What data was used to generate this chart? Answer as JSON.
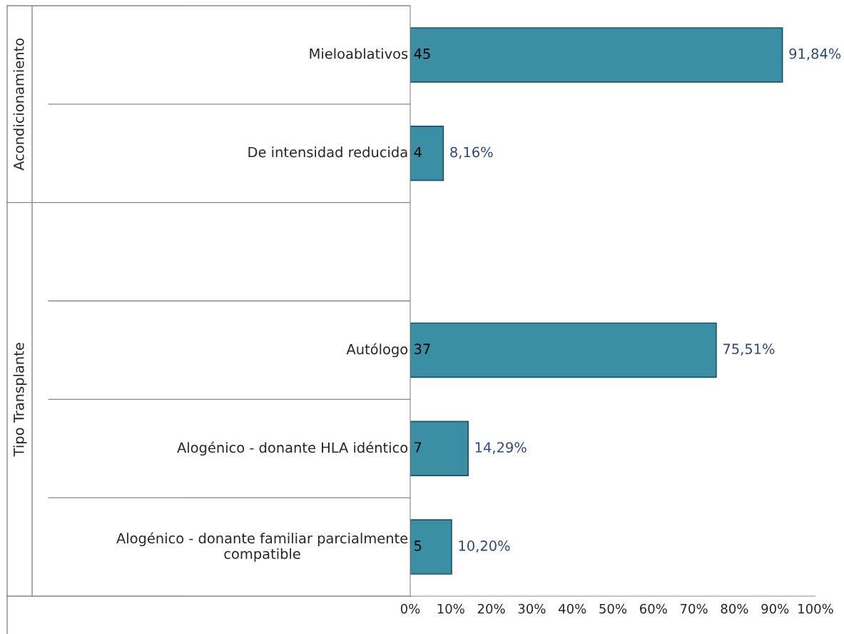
{
  "chart_data": {
    "type": "bar",
    "orientation": "horizontal",
    "categories": [
      "Mieloablativos",
      "De intensidad reducida",
      null,
      "Autólogo",
      "Alogénico - donante HLA idéntico",
      "Alogénico - donante familiar parcialmente compatible"
    ],
    "values": [
      91.84,
      8.16,
      null,
      75.51,
      14.29,
      10.2
    ],
    "value_labels": [
      "91,84%",
      "8,16%",
      null,
      "75,51%",
      "14,29%",
      "10,20%"
    ],
    "color": "#3a8fa5",
    "xlim": [
      0,
      100
    ],
    "xticks": [
      {
        "value": 0,
        "label": "0%"
      },
      {
        "value": 10,
        "label": "10%"
      },
      {
        "value": 20,
        "label": "20%"
      },
      {
        "value": 30,
        "label": "30%"
      },
      {
        "value": 40,
        "label": "40%"
      },
      {
        "value": 50,
        "label": "50%"
      },
      {
        "value": 60,
        "label": "60%"
      },
      {
        "value": 70,
        "label": "70%"
      },
      {
        "value": 80,
        "label": "80%"
      },
      {
        "value": 90,
        "label": "90%"
      },
      {
        "value": 100,
        "label": "100%"
      }
    ],
    "grid": false,
    "annotations": [
      "Acondicionamiento",
      "Tipo Transplante",
      "45",
      "4",
      "37",
      "7",
      "5"
    ]
  }
}
